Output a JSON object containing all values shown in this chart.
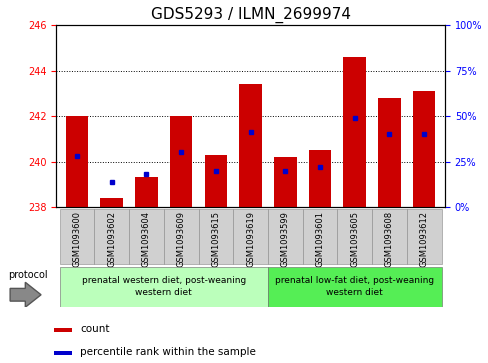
{
  "title": "GDS5293 / ILMN_2699974",
  "samples": [
    "GSM1093600",
    "GSM1093602",
    "GSM1093604",
    "GSM1093609",
    "GSM1093615",
    "GSM1093619",
    "GSM1093599",
    "GSM1093601",
    "GSM1093605",
    "GSM1093608",
    "GSM1093612"
  ],
  "count_values": [
    242.0,
    238.4,
    239.3,
    242.0,
    240.3,
    243.4,
    240.2,
    240.5,
    244.6,
    242.8,
    243.1
  ],
  "percentile_values": [
    28,
    14,
    18,
    30,
    20,
    41,
    20,
    22,
    49,
    40,
    40
  ],
  "ylim_left": [
    238,
    246
  ],
  "ylim_right": [
    0,
    100
  ],
  "yticks_left": [
    238,
    240,
    242,
    244,
    246
  ],
  "yticks_right": [
    0,
    25,
    50,
    75,
    100
  ],
  "bar_color": "#cc0000",
  "marker_color": "#0000cc",
  "bar_width": 0.65,
  "group1_label": "prenatal western diet, post-weaning\nwestern diet",
  "group2_label": "prenatal low-fat diet, post-weaning\nwestern diet",
  "group1_indices": [
    0,
    1,
    2,
    3,
    4,
    5
  ],
  "group2_indices": [
    6,
    7,
    8,
    9,
    10
  ],
  "protocol_label": "protocol",
  "legend_count": "count",
  "legend_percentile": "percentile rank within the sample",
  "sample_box_color": "#d0d0d0",
  "title_fontsize": 11,
  "tick_fontsize": 7,
  "sample_fontsize": 6,
  "group_fontsize": 6.5,
  "legend_fontsize": 7.5,
  "protocol_fontsize": 7
}
